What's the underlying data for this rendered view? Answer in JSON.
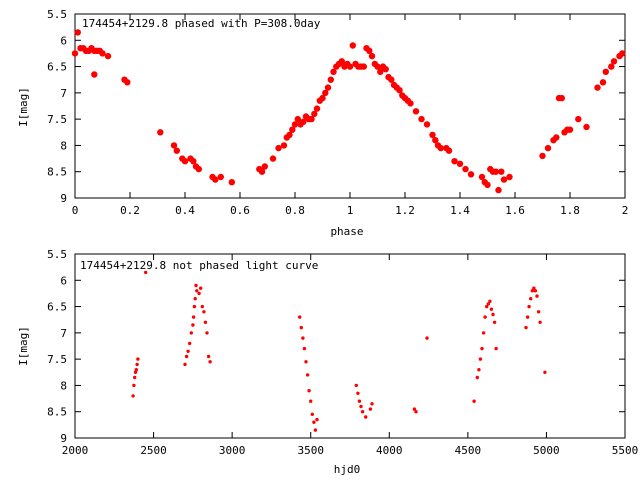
{
  "colors": {
    "marker": "#ff0000",
    "axis": "#000000",
    "background": "#ffffff"
  },
  "chart_data": [
    {
      "type": "scatter",
      "title": "174454+2129.8 phased with P=308.0day",
      "xlabel": "phase",
      "ylabel": "I[mag]",
      "xlim": [
        0,
        2
      ],
      "ylim": [
        9,
        5.5
      ],
      "y_inverted": true,
      "grid": false,
      "x_tick_labels": [
        "0",
        "0.2",
        "0.4",
        "0.6",
        "0.8",
        "1",
        "1.2",
        "1.4",
        "1.6",
        "1.8",
        "2"
      ],
      "x_ticks": [
        0,
        0.2,
        0.4,
        0.6,
        0.8,
        1.0,
        1.2,
        1.4,
        1.6,
        1.8,
        2.0
      ],
      "y_tick_labels": [
        "5.5",
        "6",
        "6.5",
        "7",
        "7.5",
        "8",
        "8.5",
        "9"
      ],
      "y_ticks": [
        5.5,
        6.0,
        6.5,
        7.0,
        7.5,
        8.0,
        8.5,
        9.0
      ],
      "marker": "filled-circle",
      "points": [
        [
          0.0,
          6.25
        ],
        [
          0.01,
          5.85
        ],
        [
          0.02,
          6.15
        ],
        [
          0.03,
          6.15
        ],
        [
          0.04,
          6.2
        ],
        [
          0.05,
          6.2
        ],
        [
          0.06,
          6.15
        ],
        [
          0.07,
          6.2
        ],
        [
          0.08,
          6.2
        ],
        [
          0.09,
          6.2
        ],
        [
          0.07,
          6.65
        ],
        [
          0.1,
          6.25
        ],
        [
          0.12,
          6.3
        ],
        [
          0.18,
          6.75
        ],
        [
          0.19,
          6.8
        ],
        [
          0.31,
          7.75
        ],
        [
          0.36,
          8.0
        ],
        [
          0.37,
          8.1
        ],
        [
          0.39,
          8.25
        ],
        [
          0.4,
          8.3
        ],
        [
          0.42,
          8.25
        ],
        [
          0.43,
          8.3
        ],
        [
          0.44,
          8.4
        ],
        [
          0.45,
          8.45
        ],
        [
          0.5,
          8.6
        ],
        [
          0.51,
          8.65
        ],
        [
          0.53,
          8.6
        ],
        [
          0.57,
          8.7
        ],
        [
          0.67,
          8.45
        ],
        [
          0.68,
          8.5
        ],
        [
          0.69,
          8.4
        ],
        [
          0.72,
          8.25
        ],
        [
          0.74,
          8.05
        ],
        [
          0.76,
          8.0
        ],
        [
          0.77,
          7.85
        ],
        [
          0.78,
          7.8
        ],
        [
          0.79,
          7.7
        ],
        [
          0.8,
          7.6
        ],
        [
          0.81,
          7.5
        ],
        [
          0.82,
          7.6
        ],
        [
          0.83,
          7.55
        ],
        [
          0.84,
          7.45
        ],
        [
          0.85,
          7.5
        ],
        [
          0.86,
          7.5
        ],
        [
          0.87,
          7.4
        ],
        [
          0.88,
          7.3
        ],
        [
          0.89,
          7.15
        ],
        [
          0.9,
          7.1
        ],
        [
          0.91,
          7.0
        ],
        [
          0.92,
          6.9
        ],
        [
          0.93,
          6.75
        ],
        [
          0.94,
          6.6
        ],
        [
          0.95,
          6.5
        ],
        [
          0.96,
          6.45
        ],
        [
          0.97,
          6.4
        ],
        [
          0.98,
          6.5
        ],
        [
          0.99,
          6.45
        ],
        [
          1.0,
          6.5
        ],
        [
          1.01,
          6.1
        ],
        [
          1.02,
          6.45
        ],
        [
          1.03,
          6.5
        ],
        [
          1.04,
          6.5
        ],
        [
          1.05,
          6.5
        ],
        [
          1.06,
          6.15
        ],
        [
          1.07,
          6.2
        ],
        [
          1.08,
          6.3
        ],
        [
          1.09,
          6.45
        ],
        [
          1.1,
          6.5
        ],
        [
          1.11,
          6.6
        ],
        [
          1.12,
          6.5
        ],
        [
          1.13,
          6.55
        ],
        [
          1.14,
          6.7
        ],
        [
          1.15,
          6.75
        ],
        [
          1.16,
          6.85
        ],
        [
          1.17,
          6.9
        ],
        [
          1.18,
          6.95
        ],
        [
          1.19,
          7.05
        ],
        [
          1.2,
          7.1
        ],
        [
          1.21,
          7.15
        ],
        [
          1.22,
          7.2
        ],
        [
          1.24,
          7.35
        ],
        [
          1.26,
          7.5
        ],
        [
          1.28,
          7.6
        ],
        [
          1.3,
          7.8
        ],
        [
          1.31,
          7.9
        ],
        [
          1.32,
          8.0
        ],
        [
          1.33,
          8.05
        ],
        [
          1.35,
          8.05
        ],
        [
          1.36,
          8.1
        ],
        [
          1.38,
          8.3
        ],
        [
          1.4,
          8.35
        ],
        [
          1.42,
          8.45
        ],
        [
          1.44,
          8.55
        ],
        [
          1.48,
          8.6
        ],
        [
          1.49,
          8.7
        ],
        [
          1.5,
          8.75
        ],
        [
          1.51,
          8.45
        ],
        [
          1.52,
          8.5
        ],
        [
          1.53,
          8.5
        ],
        [
          1.54,
          8.85
        ],
        [
          1.55,
          8.5
        ],
        [
          1.56,
          8.65
        ],
        [
          1.58,
          8.6
        ],
        [
          1.7,
          8.2
        ],
        [
          1.72,
          8.05
        ],
        [
          1.74,
          7.9
        ],
        [
          1.75,
          7.85
        ],
        [
          1.76,
          7.1
        ],
        [
          1.77,
          7.1
        ],
        [
          1.78,
          7.75
        ],
        [
          1.79,
          7.7
        ],
        [
          1.8,
          7.7
        ],
        [
          1.83,
          7.5
        ],
        [
          1.86,
          7.65
        ],
        [
          1.9,
          6.9
        ],
        [
          1.92,
          6.8
        ],
        [
          1.93,
          6.6
        ],
        [
          1.95,
          6.5
        ],
        [
          1.96,
          6.4
        ],
        [
          1.98,
          6.3
        ],
        [
          1.99,
          6.25
        ]
      ]
    },
    {
      "type": "scatter",
      "title": "174454+2129.8 not phased light curve",
      "xlabel": "hjd0",
      "ylabel": "I[mag]",
      "xlim": [
        2000,
        5500
      ],
      "ylim": [
        9,
        5.5
      ],
      "y_inverted": true,
      "grid": false,
      "x_tick_labels": [
        "2000",
        "2500",
        "3000",
        "3500",
        "4000",
        "4500",
        "5000",
        "5500"
      ],
      "x_ticks": [
        2000,
        2500,
        3000,
        3500,
        4000,
        4500,
        5000,
        5500
      ],
      "y_tick_labels": [
        "5.5",
        "6",
        "6.5",
        "7",
        "7.5",
        "8",
        "8.5",
        "9"
      ],
      "y_ticks": [
        5.5,
        6.0,
        6.5,
        7.0,
        7.5,
        8.0,
        8.5,
        9.0
      ],
      "marker": "dot",
      "points": [
        [
          2370,
          8.2
        ],
        [
          2375,
          8.0
        ],
        [
          2380,
          7.85
        ],
        [
          2385,
          7.75
        ],
        [
          2390,
          7.7
        ],
        [
          2395,
          7.6
        ],
        [
          2400,
          7.5
        ],
        [
          2450,
          5.85
        ],
        [
          2700,
          7.6
        ],
        [
          2710,
          7.45
        ],
        [
          2720,
          7.35
        ],
        [
          2730,
          7.2
        ],
        [
          2740,
          7.0
        ],
        [
          2750,
          6.85
        ],
        [
          2755,
          6.7
        ],
        [
          2760,
          6.5
        ],
        [
          2765,
          6.35
        ],
        [
          2770,
          6.1
        ],
        [
          2775,
          6.2
        ],
        [
          2790,
          6.25
        ],
        [
          2800,
          6.15
        ],
        [
          2810,
          6.5
        ],
        [
          2820,
          6.6
        ],
        [
          2830,
          6.8
        ],
        [
          2840,
          7.0
        ],
        [
          2850,
          7.45
        ],
        [
          2860,
          7.55
        ],
        [
          3430,
          6.7
        ],
        [
          3440,
          6.9
        ],
        [
          3450,
          7.1
        ],
        [
          3460,
          7.3
        ],
        [
          3470,
          7.55
        ],
        [
          3480,
          7.8
        ],
        [
          3490,
          8.1
        ],
        [
          3500,
          8.3
        ],
        [
          3510,
          8.55
        ],
        [
          3520,
          8.7
        ],
        [
          3530,
          8.85
        ],
        [
          3540,
          8.65
        ],
        [
          3790,
          8.0
        ],
        [
          3800,
          8.15
        ],
        [
          3810,
          8.3
        ],
        [
          3820,
          8.4
        ],
        [
          3830,
          8.5
        ],
        [
          3850,
          8.6
        ],
        [
          3880,
          8.45
        ],
        [
          3890,
          8.35
        ],
        [
          4160,
          8.45
        ],
        [
          4170,
          8.5
        ],
        [
          4240,
          7.1
        ],
        [
          4540,
          8.3
        ],
        [
          4560,
          7.85
        ],
        [
          4570,
          7.7
        ],
        [
          4580,
          7.5
        ],
        [
          4590,
          7.3
        ],
        [
          4600,
          7.0
        ],
        [
          4610,
          6.7
        ],
        [
          4620,
          6.5
        ],
        [
          4630,
          6.45
        ],
        [
          4640,
          6.4
        ],
        [
          4650,
          6.55
        ],
        [
          4660,
          6.65
        ],
        [
          4670,
          6.8
        ],
        [
          4680,
          7.3
        ],
        [
          4870,
          6.9
        ],
        [
          4880,
          6.7
        ],
        [
          4890,
          6.5
        ],
        [
          4900,
          6.35
        ],
        [
          4910,
          6.2
        ],
        [
          4920,
          6.15
        ],
        [
          4930,
          6.2
        ],
        [
          4940,
          6.3
        ],
        [
          4950,
          6.6
        ],
        [
          4960,
          6.8
        ],
        [
          4990,
          7.75
        ]
      ]
    }
  ]
}
